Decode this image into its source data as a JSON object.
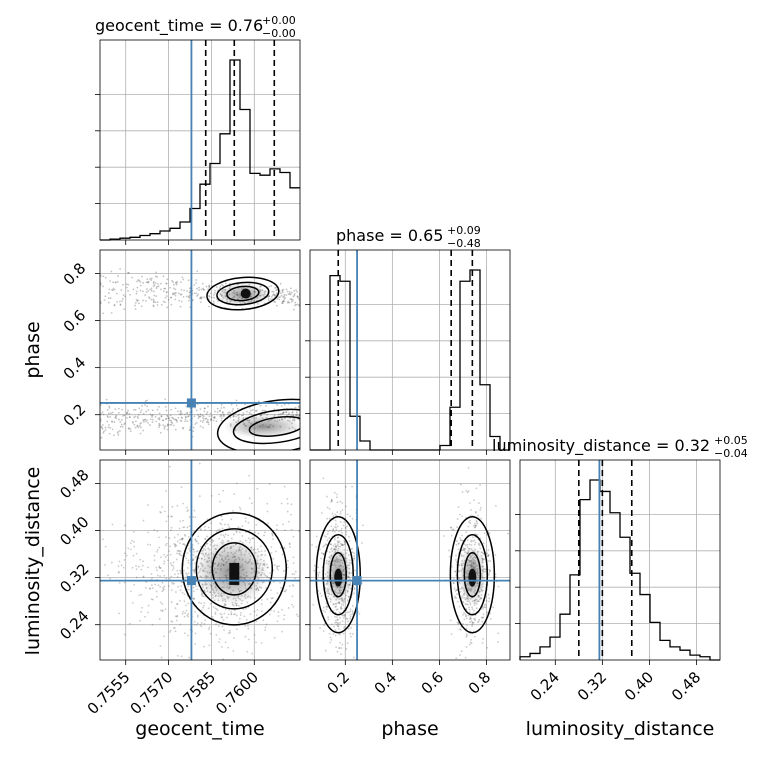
{
  "colors": {
    "truth": "#4682b4",
    "hist": "#000000",
    "scatter": "#555555",
    "grid": "#b0b0b0"
  },
  "chart_data": {
    "type": "corner",
    "parameters": [
      "geocent_time",
      "phase",
      "luminosity_distance"
    ],
    "titles": [
      {
        "text": "geocent_time = 0.76",
        "sup": "+0.00",
        "sub": "−0.00"
      },
      {
        "text": "phase = 0.65",
        "sup": "+0.09",
        "sub": "−0.48"
      },
      {
        "text": "luminosity_distance = 0.32",
        "sup": "+0.05",
        "sub": "−0.04"
      }
    ],
    "axes": {
      "geocent_time": {
        "range": [
          0.7546,
          0.7616
        ],
        "ticks": [
          0.7555,
          0.757,
          0.7585,
          0.76
        ],
        "tick_labels": [
          "0.7555",
          "0.7570",
          "0.7585",
          "0.7600"
        ]
      },
      "phase": {
        "range": [
          0.05,
          0.9
        ],
        "ticks": [
          0.2,
          0.4,
          0.6,
          0.8
        ],
        "tick_labels": [
          "0.2",
          "0.4",
          "0.6",
          "0.8"
        ]
      },
      "luminosity_distance": {
        "range": [
          0.18,
          0.52
        ],
        "ticks": [
          0.24,
          0.32,
          0.4,
          0.48
        ],
        "tick_labels": [
          "0.24",
          "0.32",
          "0.40",
          "0.48"
        ]
      }
    },
    "truths": {
      "geocent_time": 0.7578,
      "phase": 0.25,
      "luminosity_distance": 0.315
    },
    "quantiles": {
      "geocent_time": [
        0.7583,
        0.7593,
        0.7607
      ],
      "phase": [
        0.17,
        0.65,
        0.74
      ],
      "luminosity_distance": [
        0.28,
        0.32,
        0.37
      ]
    },
    "histograms": {
      "geocent_time": {
        "bins": [
          0.7546,
          0.75495,
          0.7553,
          0.75565,
          0.756,
          0.75635,
          0.7567,
          0.75705,
          0.7574,
          0.75775,
          0.7581,
          0.75845,
          0.7588,
          0.75915,
          0.7595,
          0.75985,
          0.7602,
          0.76055,
          0.7609,
          0.76125,
          0.7616
        ],
        "counts": [
          0,
          1,
          2,
          3,
          5,
          7,
          10,
          13,
          20,
          35,
          62,
          85,
          118,
          200,
          145,
          74,
          72,
          79,
          75,
          58
        ]
      },
      "phase": {
        "bins": [
          0.05,
          0.0925,
          0.135,
          0.1775,
          0.22,
          0.2625,
          0.305,
          0.3475,
          0.39,
          0.4325,
          0.475,
          0.5175,
          0.56,
          0.6025,
          0.645,
          0.6875,
          0.73,
          0.7725,
          0.815,
          0.8575,
          0.9
        ],
        "counts": [
          0,
          0,
          155,
          150,
          30,
          8,
          0,
          0,
          0,
          0,
          0,
          0,
          0,
          4,
          38,
          150,
          160,
          58,
          12,
          0
        ]
      },
      "luminosity_distance": {
        "bins": [
          0.18,
          0.197,
          0.214,
          0.231,
          0.248,
          0.265,
          0.282,
          0.299,
          0.316,
          0.333,
          0.35,
          0.367,
          0.384,
          0.401,
          0.418,
          0.435,
          0.452,
          0.469,
          0.486,
          0.503,
          0.52
        ],
        "counts": [
          2,
          4,
          8,
          14,
          28,
          52,
          98,
          110,
          103,
          90,
          75,
          53,
          40,
          23,
          12,
          8,
          6,
          3,
          2,
          0
        ]
      }
    },
    "grid": true
  }
}
